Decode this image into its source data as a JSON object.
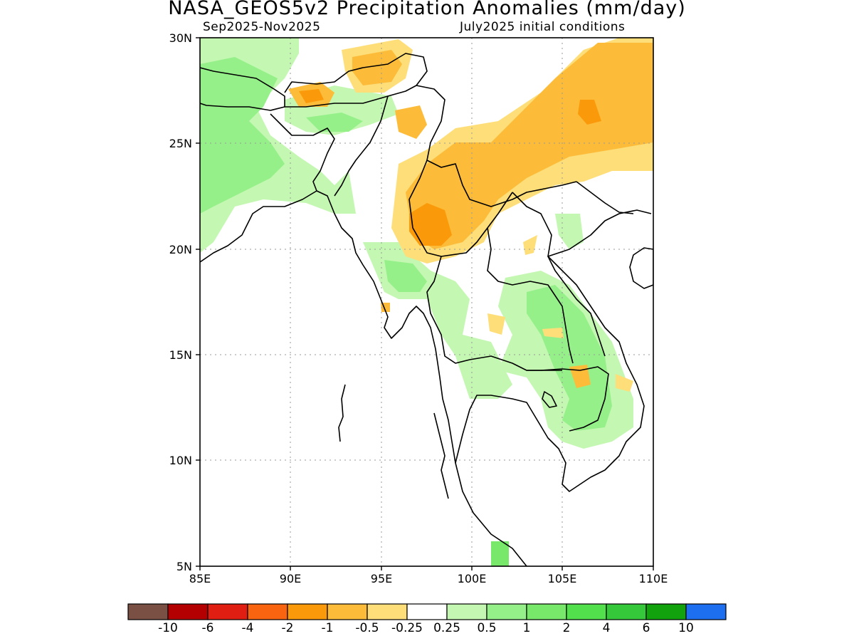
{
  "title": "NASA_GEOS5v2 Precipitation Anomalies (mm/day)",
  "subtitle_left": "Sep2025-Nov2025",
  "subtitle_right": "July2025 initial conditions",
  "x_ticks": [
    "85E",
    "90E",
    "95E",
    "100E",
    "105E",
    "110E"
  ],
  "y_ticks": [
    "30N",
    "25N",
    "20N",
    "15N",
    "10N",
    "5N"
  ],
  "colorbar": {
    "colors": [
      "#7a5045",
      "#b40000",
      "#e01e12",
      "#f86410",
      "#fa9a0a",
      "#fcbc3a",
      "#fede78",
      "#ffffff",
      "#c4f8b2",
      "#96f08a",
      "#78e86a",
      "#52e04c",
      "#34c83a",
      "#12a20e",
      "#1e6ef0"
    ],
    "labels": [
      "-10",
      "-6",
      "-4",
      "-2",
      "-1",
      "-0.5",
      "-0.25",
      "0.25",
      "0.5",
      "1",
      "2",
      "4",
      "6",
      "10"
    ]
  },
  "regions_colors": {
    "light_green": "#c4f8b2",
    "green": "#96f08a",
    "mid_green": "#78e86a",
    "light_orange": "#fede78",
    "orange": "#fcbc3a",
    "dark_orange": "#fa9a0a"
  }
}
